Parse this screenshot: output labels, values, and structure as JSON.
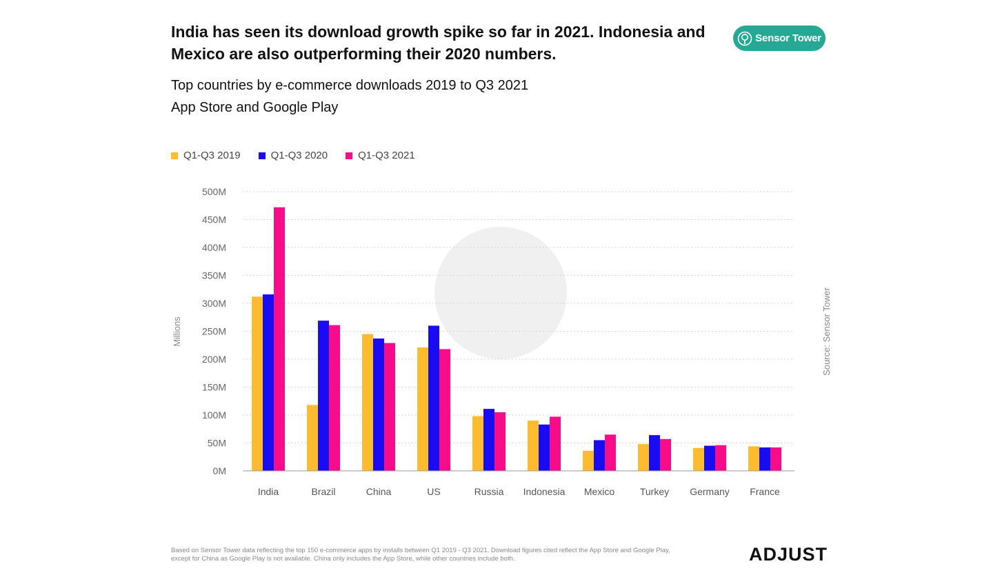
{
  "header": {
    "title": "India has seen its download growth spike so far in 2021. Indonesia and Mexico are also outperforming their 2020 numbers.",
    "subtitle_line1": "Top countries by e-commerce downloads 2019 to Q3 2021",
    "subtitle_line2": "App Store and Google Play"
  },
  "brand": {
    "badge_text": "Sensor Tower",
    "badge_icon": "sensor-tower-icon",
    "badge_color": "#26a895",
    "footer_logo": "ADJUST"
  },
  "footnote": {
    "line1": "Based on Sensor Tower data reflecting the top 150 e-commerce apps by installs between Q1 2019 - Q3 2021. Download figures cited reflect the App Store and Google Play,",
    "line2": "except for China as Google Play is not available. China only includes the App Store, while other countries include both."
  },
  "chart_data": {
    "type": "bar",
    "title": "Top countries by e-commerce downloads 2019 to Q3 2021",
    "xlabel": "",
    "ylabel": "Millions",
    "source": "Source: Sensor Tower",
    "ylim": [
      0,
      500
    ],
    "y_ticks": [
      0,
      50,
      100,
      150,
      200,
      250,
      300,
      350,
      400,
      450,
      500
    ],
    "y_tick_labels": [
      "0M",
      "50M",
      "100M",
      "150M",
      "200M",
      "250M",
      "300M",
      "350M",
      "400M",
      "450M",
      "500M"
    ],
    "grid": true,
    "legend_position": "top-left",
    "categories": [
      "India",
      "Brazil",
      "China",
      "US",
      "Russia",
      "Indonesia",
      "Mexico",
      "Turkey",
      "Germany",
      "France"
    ],
    "series": [
      {
        "name": "Q1-Q3 2019",
        "color": "#fdbb2f",
        "values": [
          312,
          118,
          245,
          221,
          98,
          90,
          36,
          48,
          41,
          44
        ]
      },
      {
        "name": "Q1-Q3 2020",
        "color": "#1a0cf2",
        "values": [
          316,
          269,
          237,
          260,
          111,
          83,
          55,
          64,
          45,
          42
        ]
      },
      {
        "name": "Q1-Q3 2021",
        "color": "#f70c8a",
        "values": [
          472,
          261,
          229,
          218,
          105,
          97,
          65,
          57,
          46,
          42
        ]
      }
    ]
  }
}
